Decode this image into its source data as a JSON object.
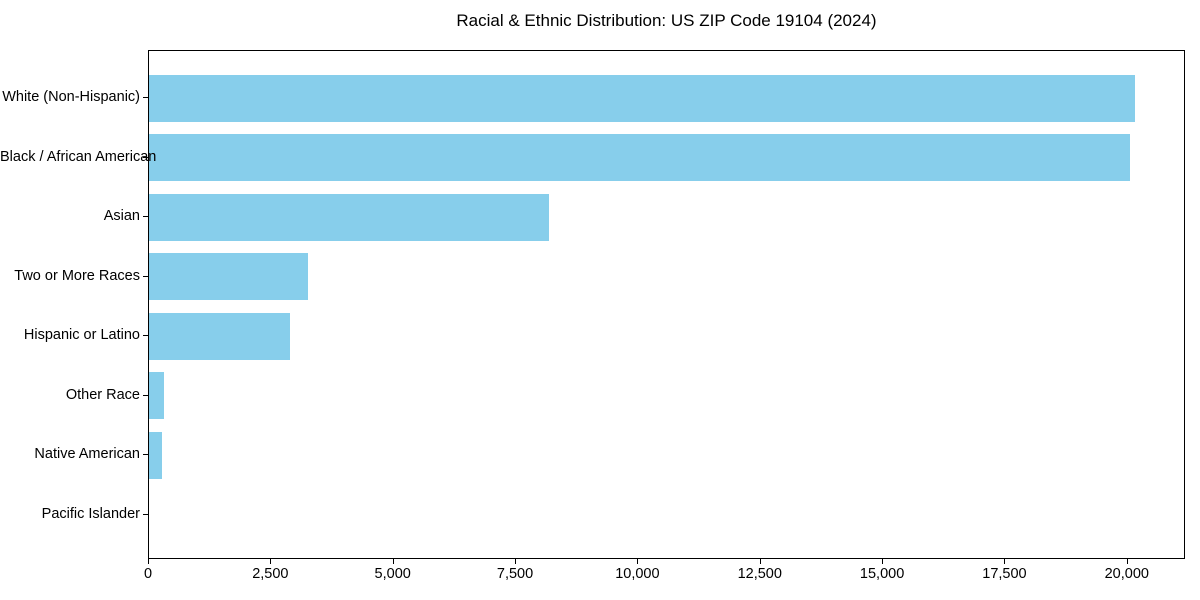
{
  "figure": {
    "title": "Racial & Ethnic Distribution: US ZIP Code 19104 (2024)"
  },
  "chart_data": {
    "type": "bar",
    "orientation": "horizontal",
    "title": "Racial & Ethnic Distribution: US ZIP Code 19104 (2024)",
    "categories": [
      "White (Non-Hispanic)",
      "Black / African American",
      "Asian",
      "Two or More Races",
      "Hispanic or Latino",
      "Other Race",
      "Native American",
      "Pacific Islander"
    ],
    "values": [
      20180,
      20075,
      8190,
      3250,
      2890,
      300,
      260,
      0
    ],
    "xlabel": "",
    "ylabel": "",
    "xlim": [
      0,
      21189
    ],
    "xticks": [
      0,
      2500,
      5000,
      7500,
      10000,
      12500,
      15000,
      17500,
      20000
    ],
    "xtick_labels": [
      "0",
      "2,500",
      "5,000",
      "7,500",
      "10,000",
      "12,500",
      "15,000",
      "17,500",
      "20,000"
    ],
    "bar_color": "#87CEEB",
    "axis_color": "#000000",
    "text_color": "#000000",
    "background_color": "#FFFFFF",
    "grid": false,
    "legend": false
  }
}
